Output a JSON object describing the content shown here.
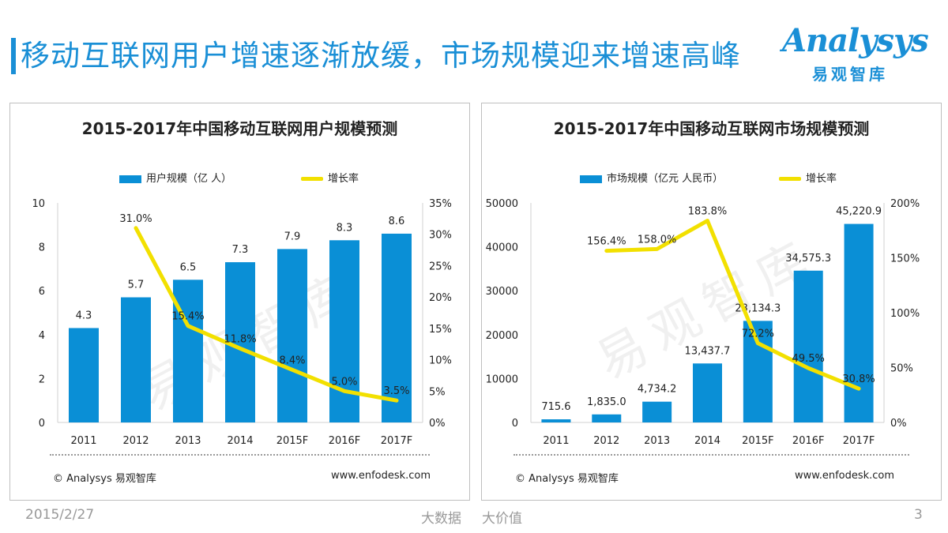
{
  "page": {
    "title": "移动互联网用户增速逐渐放缓，市场规模迎来增速高峰",
    "logo_word": "Analysys",
    "logo_cn": "易观智库",
    "watermark": "易观智库"
  },
  "footer": {
    "date": "2015/2/27",
    "tag1": "大数据",
    "tag2": "大价值",
    "page_number": "3"
  },
  "colors": {
    "accent": "#1a8fd6",
    "bar": "#0a8fd6",
    "line": "#f2e000"
  },
  "chart_data": [
    {
      "type": "bar",
      "title": "2015-2017年中国移动互联网用户规模预测",
      "categories": [
        "2011",
        "2012",
        "2013",
        "2014",
        "2015F",
        "2016F",
        "2017F"
      ],
      "series": [
        {
          "name": "用户规模（亿 人）",
          "type": "bar",
          "axis": "left",
          "values": [
            4.3,
            5.7,
            6.5,
            7.3,
            7.9,
            8.3,
            8.6
          ],
          "labels": [
            "4.3",
            "5.7",
            "6.5",
            "7.3",
            "7.9",
            "8.3",
            "8.6"
          ]
        },
        {
          "name": "增长率",
          "type": "line",
          "axis": "right",
          "values": [
            null,
            31.0,
            15.4,
            11.8,
            8.4,
            5.0,
            3.5
          ],
          "labels": [
            "",
            "31.0%",
            "15.4%",
            "11.8%",
            "8.4%",
            "5.0%",
            "3.5%"
          ]
        }
      ],
      "ylim": [
        0,
        10
      ],
      "yticks": [
        "0",
        "2",
        "4",
        "6",
        "8",
        "10"
      ],
      "ytick_values": [
        0,
        2,
        4,
        6,
        8,
        10
      ],
      "y2lim": [
        0,
        35
      ],
      "y2ticks": [
        "0%",
        "5%",
        "10%",
        "15%",
        "20%",
        "25%",
        "30%",
        "35%"
      ],
      "y2tick_values": [
        0,
        5,
        10,
        15,
        20,
        25,
        30,
        35
      ],
      "legend_position": "top",
      "source": "© Analysys 易观智库",
      "site": "www.enfodesk.com"
    },
    {
      "type": "bar",
      "title": "2015-2017年中国移动互联网市场规模预测",
      "categories": [
        "2011",
        "2012",
        "2013",
        "2014",
        "2015F",
        "2016F",
        "2017F"
      ],
      "series": [
        {
          "name": "市场规模（亿元 人民币）",
          "type": "bar",
          "axis": "left",
          "values": [
            715.6,
            1835.0,
            4734.2,
            13437.7,
            23134.3,
            34575.3,
            45220.9
          ],
          "labels": [
            "715.6",
            "1,835.0",
            "4,734.2",
            "13,437.7",
            "23,134.3",
            "34,575.3",
            "45,220.9"
          ]
        },
        {
          "name": "增长率",
          "type": "line",
          "axis": "right",
          "values": [
            null,
            156.4,
            158.0,
            183.8,
            72.2,
            49.5,
            30.8
          ],
          "labels": [
            "",
            "156.4%",
            "158.0%",
            "183.8%",
            "72.2%",
            "49.5%",
            "30.8%"
          ]
        }
      ],
      "ylim": [
        0,
        50000
      ],
      "yticks": [
        "0",
        "10000",
        "20000",
        "30000",
        "40000",
        "50000"
      ],
      "ytick_values": [
        0,
        10000,
        20000,
        30000,
        40000,
        50000
      ],
      "y2lim": [
        0,
        200
      ],
      "y2ticks": [
        "0%",
        "50%",
        "100%",
        "150%",
        "200%"
      ],
      "y2tick_values": [
        0,
        50,
        100,
        150,
        200
      ],
      "legend_position": "top",
      "source": "© Analysys 易观智库",
      "site": "www.enfodesk.com"
    }
  ]
}
